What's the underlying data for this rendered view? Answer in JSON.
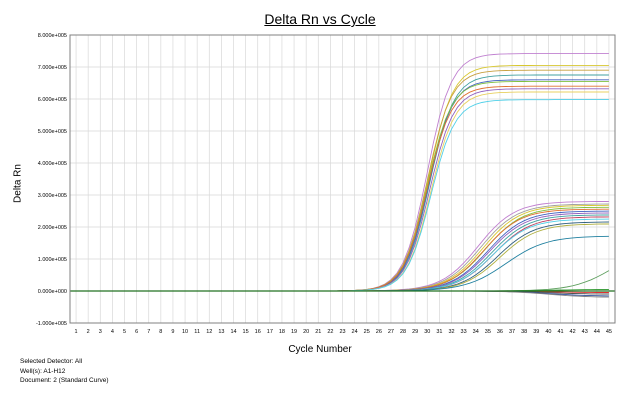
{
  "chart_data": {
    "type": "line",
    "title": "Delta Rn vs Cycle",
    "xlabel": "Cycle Number",
    "ylabel": "Delta Rn",
    "xlim": [
      0.5,
      45.5
    ],
    "ylim": [
      -100000,
      800000
    ],
    "x_ticks": [
      "1",
      "2",
      "3",
      "4",
      "5",
      "6",
      "7",
      "8",
      "9",
      "10",
      "11",
      "12",
      "13",
      "14",
      "15",
      "16",
      "17",
      "18",
      "19",
      "20",
      "21",
      "22",
      "23",
      "24",
      "25",
      "26",
      "27",
      "28",
      "29",
      "30",
      "31",
      "32",
      "33",
      "34",
      "35",
      "36",
      "37",
      "38",
      "39",
      "40",
      "41",
      "42",
      "43",
      "44",
      "45"
    ],
    "y_ticks": [
      {
        "value": 800000,
        "label": "8.000e+005"
      },
      {
        "value": 700000,
        "label": "7.000e+005"
      },
      {
        "value": 600000,
        "label": "6.000e+005"
      },
      {
        "value": 500000,
        "label": "5.000e+005"
      },
      {
        "value": 400000,
        "label": "4.000e+005"
      },
      {
        "value": 300000,
        "label": "3.000e+005"
      },
      {
        "value": 200000,
        "label": "2.000e+005"
      },
      {
        "value": 100000,
        "label": "1.000e+005"
      },
      {
        "value": 0,
        "label": "0.000e+000"
      },
      {
        "value": -100000,
        "label": "-1.000e+005"
      }
    ],
    "grid": true,
    "series": [
      {
        "color": "#c080d0",
        "max": 742000,
        "mid": 30.0,
        "slope": 0.5
      },
      {
        "color": "#d8c830",
        "max": 705000,
        "mid": 30.1,
        "slope": 0.5
      },
      {
        "color": "#c8a040",
        "max": 690000,
        "mid": 30.0,
        "slope": 0.5
      },
      {
        "color": "#40a0a0",
        "max": 675000,
        "mid": 30.2,
        "slope": 0.5
      },
      {
        "color": "#4060c0",
        "max": 660000,
        "mid": 30.1,
        "slope": 0.5
      },
      {
        "color": "#80c040",
        "max": 655000,
        "mid": 30.0,
        "slope": 0.5
      },
      {
        "color": "#e07030",
        "max": 640000,
        "mid": 30.0,
        "slope": 0.5
      },
      {
        "color": "#9060c0",
        "max": 632000,
        "mid": 30.2,
        "slope": 0.5
      },
      {
        "color": "#e8d060",
        "max": 622000,
        "mid": 30.3,
        "slope": 0.5
      },
      {
        "color": "#50d0e8",
        "max": 598000,
        "mid": 30.3,
        "slope": 0.5
      },
      {
        "color": "#c080d0",
        "max": 280000,
        "mid": 34.2,
        "slope": 0.33
      },
      {
        "color": "#a0a0a0",
        "max": 272000,
        "mid": 34.4,
        "slope": 0.33
      },
      {
        "color": "#d8c830",
        "max": 268000,
        "mid": 34.6,
        "slope": 0.33
      },
      {
        "color": "#80c040",
        "max": 262000,
        "mid": 34.8,
        "slope": 0.33
      },
      {
        "color": "#e07030",
        "max": 256000,
        "mid": 34.7,
        "slope": 0.33
      },
      {
        "color": "#4060c0",
        "max": 250000,
        "mid": 35.0,
        "slope": 0.33
      },
      {
        "color": "#9060c0",
        "max": 244000,
        "mid": 35.1,
        "slope": 0.33
      },
      {
        "color": "#40a0a0",
        "max": 238000,
        "mid": 35.3,
        "slope": 0.33
      },
      {
        "color": "#c04060",
        "max": 232000,
        "mid": 35.5,
        "slope": 0.33
      },
      {
        "color": "#50d0e8",
        "max": 225000,
        "mid": 35.4,
        "slope": 0.33
      },
      {
        "color": "#306080",
        "max": 216000,
        "mid": 35.8,
        "slope": 0.33
      },
      {
        "color": "#b0b040",
        "max": 210000,
        "mid": 36.0,
        "slope": 0.33
      },
      {
        "color": "#2080a0",
        "max": 172000,
        "mid": 36.5,
        "slope": 0.3
      },
      {
        "color": "#60a060",
        "max": 150000,
        "mid": 45.5,
        "slope": 0.3
      },
      {
        "color": "#e03030",
        "max": -5000,
        "mid": 40.0,
        "slope": 0.3
      },
      {
        "color": "#505050",
        "max": -10000,
        "mid": 40.0,
        "slope": 0.3
      },
      {
        "color": "#3050a0",
        "max": -16000,
        "mid": 40.0,
        "slope": 0.3
      },
      {
        "color": "#808080",
        "max": -20000,
        "mid": 40.0,
        "slope": 0.3
      },
      {
        "color": "#40a040",
        "max": 5000,
        "mid": 40.0,
        "slope": 0.3
      }
    ]
  },
  "footer": {
    "line1": "Selected Detector: All",
    "line2": "Well(s): A1-H12",
    "line3": "Document: 2 (Standard Curve)"
  }
}
